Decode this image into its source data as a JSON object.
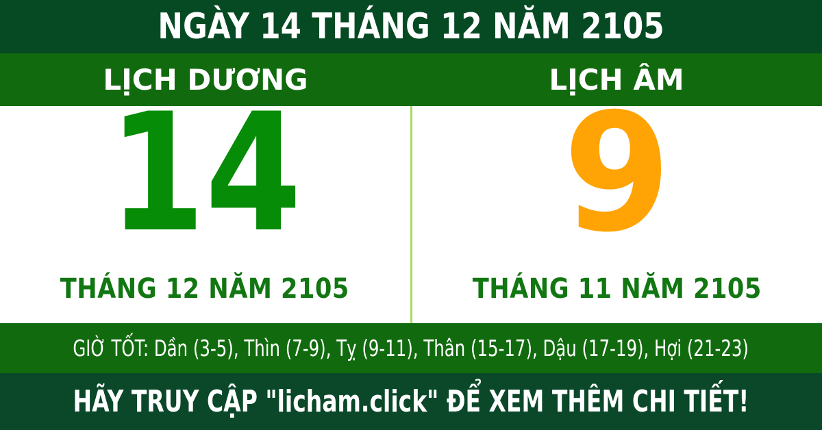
{
  "header": {
    "title": "NGÀY 14 THÁNG 12 NĂM 2105"
  },
  "solar": {
    "header": "LỊCH DƯƠNG",
    "day": "14",
    "month_year": "THÁNG 12 NĂM 2105"
  },
  "lunar": {
    "header": "LỊCH ÂM",
    "day": "9",
    "month_year": "THÁNG 11 NĂM 2105"
  },
  "good_hours": {
    "label": "GIỜ TỐT:",
    "value": "Dần (3-5), Thìn (7-9), Tỵ (9-11), Thân (15-17), Dậu (17-19), Hợi (21-23)"
  },
  "footer": {
    "text": "HÃY TRUY CẬP \"licham.click\" ĐỂ XEM THÊM CHI TIẾT!"
  },
  "colors": {
    "header_bg": "#054a23",
    "band_bg": "#116b0e",
    "panel_bg": "#ffffff",
    "solar_day": "#068c06",
    "lunar_day": "#ffa404",
    "month_label": "#127712",
    "good_hours_bg": "#116b0e",
    "footer_bg": "#0a4829",
    "divider": "#a8d95e",
    "text_on_green": "#ffffff"
  }
}
